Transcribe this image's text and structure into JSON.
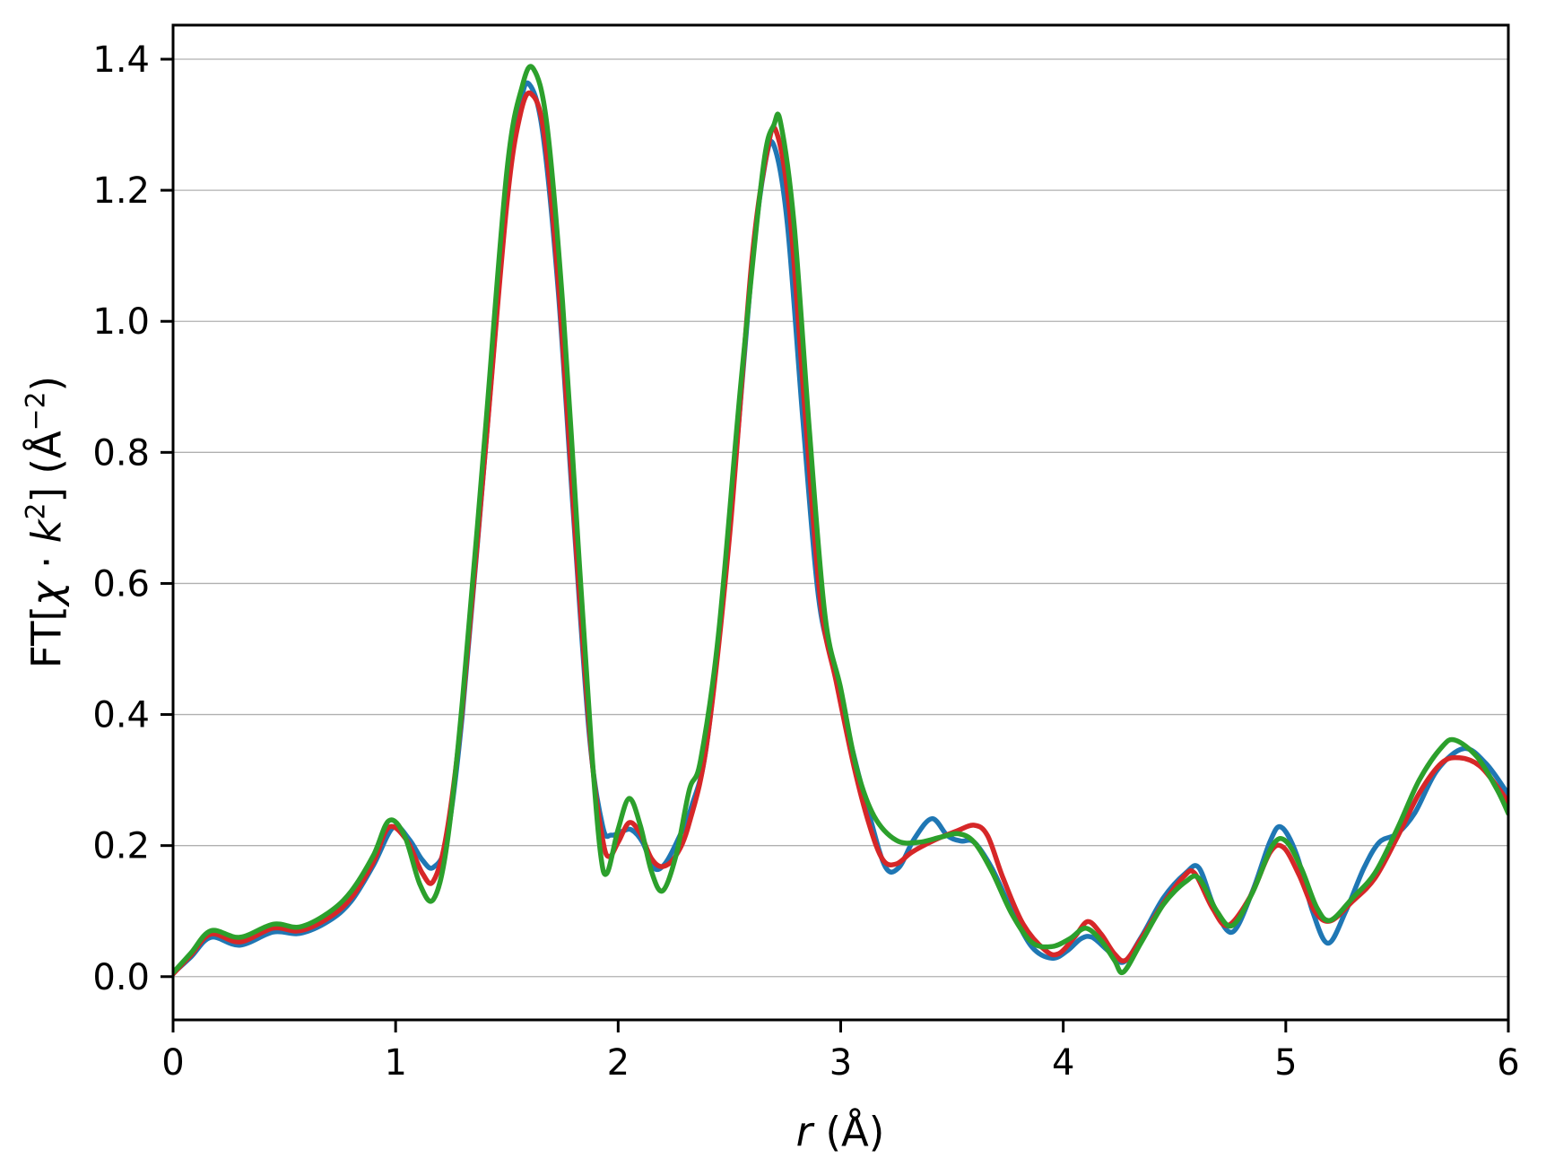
{
  "labels": {
    "x": {
      "p1": "r",
      "p2": " (Å)"
    },
    "y": {
      "p1": "FT[",
      "p2": "χ",
      "p3": " · ",
      "p4": "k",
      "p5": "2",
      "p6": "] (Å",
      "p7": "−2",
      "p8": ")"
    }
  },
  "chart_data": {
    "type": "line",
    "title": "",
    "xlabel": "r (Å)",
    "ylabel": "FT[χ·k²] (Å⁻²)",
    "xlim": [
      0,
      6
    ],
    "ylim": [
      -0.066,
      1.452
    ],
    "x_ticks": [
      0,
      1,
      2,
      3,
      4,
      5,
      6
    ],
    "x_tick_labels": [
      "0",
      "1",
      "2",
      "3",
      "4",
      "5",
      "6"
    ],
    "y_ticks": [
      0.0,
      0.2,
      0.4,
      0.6,
      0.8,
      1.0,
      1.2,
      1.4
    ],
    "y_tick_labels": [
      "0.0",
      "0.2",
      "0.4",
      "0.6",
      "0.8",
      "1.0",
      "1.2",
      "1.4"
    ],
    "grid": "horizontal-only",
    "grid_color": "#b0b0b0",
    "frame_color": "#000000",
    "legend": "none",
    "line_width": 5.5,
    "series": [
      {
        "name": "blue",
        "color": "#1f77b4",
        "points": [
          [
            0,
            0.005
          ],
          [
            0.08,
            0.03
          ],
          [
            0.17,
            0.06
          ],
          [
            0.3,
            0.048
          ],
          [
            0.45,
            0.068
          ],
          [
            0.57,
            0.066
          ],
          [
            0.7,
            0.085
          ],
          [
            0.8,
            0.115
          ],
          [
            0.9,
            0.17
          ],
          [
            0.99,
            0.228
          ],
          [
            1.06,
            0.21
          ],
          [
            1.12,
            0.178
          ],
          [
            1.17,
            0.167
          ],
          [
            1.23,
            0.21
          ],
          [
            1.3,
            0.4
          ],
          [
            1.4,
            0.79
          ],
          [
            1.5,
            1.19
          ],
          [
            1.56,
            1.33
          ],
          [
            1.6,
            1.362
          ],
          [
            1.66,
            1.29
          ],
          [
            1.73,
            1.05
          ],
          [
            1.8,
            0.7
          ],
          [
            1.87,
            0.37
          ],
          [
            1.93,
            0.23
          ],
          [
            1.97,
            0.216
          ],
          [
            2.02,
            0.222
          ],
          [
            2.06,
            0.224
          ],
          [
            2.11,
            0.205
          ],
          [
            2.16,
            0.166
          ],
          [
            2.21,
            0.172
          ],
          [
            2.27,
            0.21
          ],
          [
            2.33,
            0.26
          ],
          [
            2.4,
            0.36
          ],
          [
            2.5,
            0.68
          ],
          [
            2.6,
            1.08
          ],
          [
            2.66,
            1.24
          ],
          [
            2.7,
            1.268
          ],
          [
            2.76,
            1.15
          ],
          [
            2.83,
            0.85
          ],
          [
            2.9,
            0.58
          ],
          [
            2.97,
            0.47
          ],
          [
            3.05,
            0.35
          ],
          [
            3.13,
            0.245
          ],
          [
            3.2,
            0.168
          ],
          [
            3.26,
            0.166
          ],
          [
            3.33,
            0.21
          ],
          [
            3.41,
            0.241
          ],
          [
            3.48,
            0.215
          ],
          [
            3.54,
            0.207
          ],
          [
            3.6,
            0.205
          ],
          [
            3.68,
            0.165
          ],
          [
            3.77,
            0.1
          ],
          [
            3.86,
            0.045
          ],
          [
            3.95,
            0.028
          ],
          [
            4.02,
            0.04
          ],
          [
            4.08,
            0.058
          ],
          [
            4.13,
            0.06
          ],
          [
            4.2,
            0.04
          ],
          [
            4.27,
            0.022
          ],
          [
            4.35,
            0.06
          ],
          [
            4.45,
            0.12
          ],
          [
            4.55,
            0.158
          ],
          [
            4.61,
            0.166
          ],
          [
            4.68,
            0.105
          ],
          [
            4.76,
            0.068
          ],
          [
            4.85,
            0.13
          ],
          [
            4.93,
            0.207
          ],
          [
            4.98,
            0.228
          ],
          [
            5.05,
            0.185
          ],
          [
            5.12,
            0.1
          ],
          [
            5.19,
            0.051
          ],
          [
            5.27,
            0.1
          ],
          [
            5.35,
            0.165
          ],
          [
            5.42,
            0.205
          ],
          [
            5.5,
            0.218
          ],
          [
            5.58,
            0.25
          ],
          [
            5.68,
            0.315
          ],
          [
            5.8,
            0.348
          ],
          [
            5.9,
            0.325
          ],
          [
            6,
            0.278
          ]
        ]
      },
      {
        "name": "red",
        "color": "#d62728",
        "points": [
          [
            0,
            0.004
          ],
          [
            0.08,
            0.033
          ],
          [
            0.17,
            0.065
          ],
          [
            0.3,
            0.053
          ],
          [
            0.45,
            0.074
          ],
          [
            0.57,
            0.07
          ],
          [
            0.7,
            0.09
          ],
          [
            0.8,
            0.12
          ],
          [
            0.9,
            0.175
          ],
          [
            0.97,
            0.228
          ],
          [
            1.05,
            0.208
          ],
          [
            1.12,
            0.158
          ],
          [
            1.17,
            0.146
          ],
          [
            1.23,
            0.22
          ],
          [
            1.3,
            0.41
          ],
          [
            1.4,
            0.79
          ],
          [
            1.5,
            1.18
          ],
          [
            1.56,
            1.315
          ],
          [
            1.61,
            1.347
          ],
          [
            1.67,
            1.28
          ],
          [
            1.74,
            1.02
          ],
          [
            1.81,
            0.66
          ],
          [
            1.88,
            0.34
          ],
          [
            1.93,
            0.21
          ],
          [
            1.96,
            0.183
          ],
          [
            2.0,
            0.205
          ],
          [
            2.05,
            0.235
          ],
          [
            2.1,
            0.218
          ],
          [
            2.15,
            0.18
          ],
          [
            2.2,
            0.168
          ],
          [
            2.26,
            0.185
          ],
          [
            2.32,
            0.235
          ],
          [
            2.4,
            0.36
          ],
          [
            2.5,
            0.67
          ],
          [
            2.6,
            1.09
          ],
          [
            2.67,
            1.26
          ],
          [
            2.71,
            1.29
          ],
          [
            2.77,
            1.17
          ],
          [
            2.84,
            0.86
          ],
          [
            2.91,
            0.57
          ],
          [
            2.98,
            0.45
          ],
          [
            3.06,
            0.32
          ],
          [
            3.13,
            0.23
          ],
          [
            3.19,
            0.178
          ],
          [
            3.25,
            0.172
          ],
          [
            3.32,
            0.19
          ],
          [
            3.42,
            0.208
          ],
          [
            3.52,
            0.222
          ],
          [
            3.6,
            0.231
          ],
          [
            3.66,
            0.215
          ],
          [
            3.73,
            0.15
          ],
          [
            3.82,
            0.08
          ],
          [
            3.92,
            0.04
          ],
          [
            3.98,
            0.035
          ],
          [
            4.05,
            0.06
          ],
          [
            4.11,
            0.084
          ],
          [
            4.17,
            0.065
          ],
          [
            4.23,
            0.035
          ],
          [
            4.28,
            0.025
          ],
          [
            4.35,
            0.058
          ],
          [
            4.45,
            0.112
          ],
          [
            4.54,
            0.152
          ],
          [
            4.59,
            0.158
          ],
          [
            4.67,
            0.105
          ],
          [
            4.74,
            0.078
          ],
          [
            4.84,
            0.122
          ],
          [
            4.93,
            0.19
          ],
          [
            4.99,
            0.197
          ],
          [
            5.06,
            0.155
          ],
          [
            5.13,
            0.1
          ],
          [
            5.2,
            0.085
          ],
          [
            5.3,
            0.115
          ],
          [
            5.4,
            0.15
          ],
          [
            5.5,
            0.212
          ],
          [
            5.6,
            0.28
          ],
          [
            5.7,
            0.326
          ],
          [
            5.78,
            0.334
          ],
          [
            5.87,
            0.322
          ],
          [
            5.95,
            0.29
          ],
          [
            6,
            0.266
          ]
        ]
      },
      {
        "name": "green",
        "color": "#2ca02c",
        "points": [
          [
            0,
            0.006
          ],
          [
            0.08,
            0.036
          ],
          [
            0.17,
            0.07
          ],
          [
            0.3,
            0.06
          ],
          [
            0.45,
            0.08
          ],
          [
            0.57,
            0.076
          ],
          [
            0.7,
            0.098
          ],
          [
            0.8,
            0.13
          ],
          [
            0.9,
            0.185
          ],
          [
            0.97,
            0.238
          ],
          [
            1.04,
            0.215
          ],
          [
            1.11,
            0.14
          ],
          [
            1.17,
            0.118
          ],
          [
            1.23,
            0.2
          ],
          [
            1.3,
            0.42
          ],
          [
            1.4,
            0.82
          ],
          [
            1.5,
            1.23
          ],
          [
            1.57,
            1.36
          ],
          [
            1.62,
            1.385
          ],
          [
            1.68,
            1.3
          ],
          [
            1.75,
            1.03
          ],
          [
            1.82,
            0.66
          ],
          [
            1.88,
            0.35
          ],
          [
            1.92,
            0.19
          ],
          [
            1.95,
            0.158
          ],
          [
            2.0,
            0.225
          ],
          [
            2.05,
            0.272
          ],
          [
            2.1,
            0.23
          ],
          [
            2.15,
            0.16
          ],
          [
            2.2,
            0.131
          ],
          [
            2.26,
            0.185
          ],
          [
            2.32,
            0.285
          ],
          [
            2.37,
            0.33
          ],
          [
            2.45,
            0.52
          ],
          [
            2.55,
            0.9
          ],
          [
            2.65,
            1.23
          ],
          [
            2.7,
            1.3
          ],
          [
            2.73,
            1.303
          ],
          [
            2.79,
            1.15
          ],
          [
            2.86,
            0.83
          ],
          [
            2.93,
            0.55
          ],
          [
            3.0,
            0.44
          ],
          [
            3.07,
            0.32
          ],
          [
            3.15,
            0.245
          ],
          [
            3.25,
            0.208
          ],
          [
            3.35,
            0.205
          ],
          [
            3.45,
            0.213
          ],
          [
            3.53,
            0.218
          ],
          [
            3.6,
            0.205
          ],
          [
            3.68,
            0.16
          ],
          [
            3.77,
            0.095
          ],
          [
            3.86,
            0.052
          ],
          [
            3.95,
            0.046
          ],
          [
            4.03,
            0.058
          ],
          [
            4.1,
            0.074
          ],
          [
            4.17,
            0.055
          ],
          [
            4.23,
            0.025
          ],
          [
            4.27,
            0.007
          ],
          [
            4.35,
            0.052
          ],
          [
            4.45,
            0.11
          ],
          [
            4.55,
            0.145
          ],
          [
            4.61,
            0.15
          ],
          [
            4.69,
            0.1
          ],
          [
            4.76,
            0.078
          ],
          [
            4.85,
            0.128
          ],
          [
            4.94,
            0.2
          ],
          [
            5.0,
            0.207
          ],
          [
            5.07,
            0.165
          ],
          [
            5.14,
            0.105
          ],
          [
            5.2,
            0.086
          ],
          [
            5.3,
            0.12
          ],
          [
            5.4,
            0.158
          ],
          [
            5.5,
            0.225
          ],
          [
            5.6,
            0.3
          ],
          [
            5.7,
            0.35
          ],
          [
            5.76,
            0.361
          ],
          [
            5.86,
            0.335
          ],
          [
            5.95,
            0.285
          ],
          [
            6,
            0.249
          ]
        ]
      }
    ]
  }
}
